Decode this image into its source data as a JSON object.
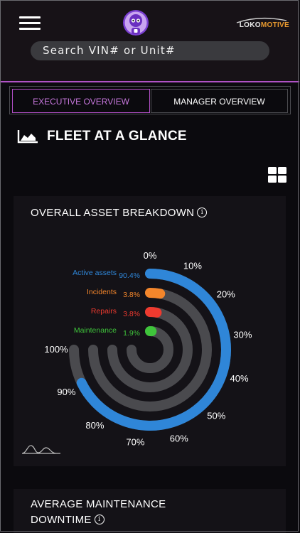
{
  "header": {
    "brand_left": "LOKO",
    "brand_right": "MOTIVE",
    "search_placeholder": "Search VIN# or Unit#"
  },
  "tabs": [
    {
      "label": "EXECUTIVE OVERVIEW",
      "active": true
    },
    {
      "label": "MANAGER OVERVIEW",
      "active": false
    }
  ],
  "section": {
    "title": "FLEET AT A GLANCE",
    "icon": "area-chart-icon"
  },
  "view_toggle_icon": "grid-view-icon",
  "breakdown_card": {
    "title": "OVERALL ASSET BREAKDOWN",
    "info_icon": "info-icon",
    "footer_icon": "sparkline-icon"
  },
  "chart_data": {
    "type": "radial-bar",
    "title": "OVERALL ASSET BREAKDOWN",
    "series": [
      {
        "name": "Active assets",
        "value": 90.4,
        "value_label": "90.4%",
        "color": "#2f86d8"
      },
      {
        "name": "Incidents",
        "value": 3.8,
        "value_label": "3.8%",
        "color": "#f4862b"
      },
      {
        "name": "Repairs",
        "value": 3.8,
        "value_label": "3.8%",
        "color": "#ee3a2f"
      },
      {
        "name": "Maintenance",
        "value": 1.9,
        "value_label": "1.9%",
        "color": "#3fc43b"
      }
    ],
    "axis_ticks": [
      "0%",
      "10%",
      "20%",
      "30%",
      "40%",
      "50%",
      "60%",
      "70%",
      "80%",
      "90%",
      "100%"
    ],
    "range": [
      0,
      100
    ],
    "track_color": "#4a4a4e"
  },
  "downtime_card": {
    "title": "AVERAGE MAINTENANCE DOWNTIME"
  }
}
